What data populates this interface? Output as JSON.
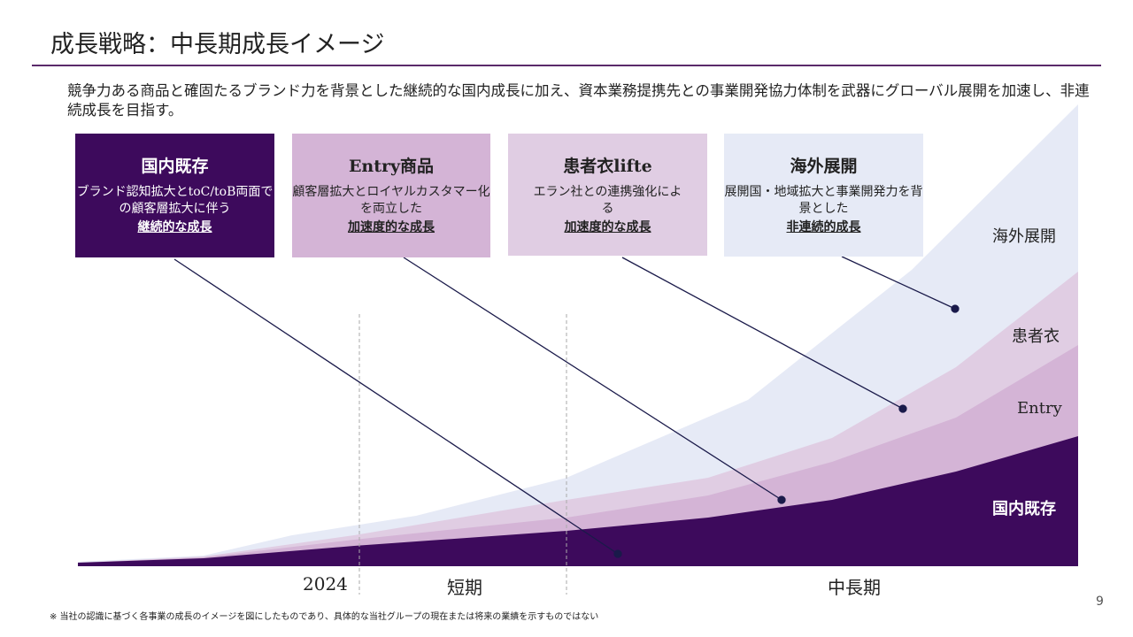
{
  "title": "成長戦略：中長期成長イメージ",
  "lead": "競争力ある商品と確固たるブランド力を背景とした継続的な国内成長に加え、資本業務提携先との事業開発協力体制を武器にグローバル展開を加速し、非連続成長を目指す。",
  "boxes": [
    {
      "heading": "国内既存",
      "desc": "ブランド認知拡大とtoC/toB両面での顧客層拡大に伴う",
      "emphasis": "継続的な成長"
    },
    {
      "heading": "Entry商品",
      "desc": "顧客層拡大とロイヤルカスタマー化を両立した",
      "emphasis": "加速度的な成長"
    },
    {
      "heading": "患者衣lifte",
      "desc": "エラン社との連携強化による",
      "emphasis": "加速度的な成長"
    },
    {
      "heading": "海外展開",
      "desc": "展開国・地域拡大と事業開発力を背景とした",
      "emphasis": "非連続的成長"
    }
  ],
  "layers": {
    "overseas": "海外展開",
    "patient": "患者衣",
    "entry": "Entry",
    "domestic": "国内既存"
  },
  "axis": {
    "year": "2024",
    "short": "短期",
    "mid": "中長期"
  },
  "colors": {
    "domestic": "#3d0a5c",
    "entry": "#d4b4d6",
    "patient": "#e0cde3",
    "overseas": "#e6eaf6"
  },
  "note": "※ 当社の認識に基づく各事業の成長のイメージを図にしたものであり、具体的な当社グループの現在または将来の業績を示すものではない",
  "page": "9"
}
